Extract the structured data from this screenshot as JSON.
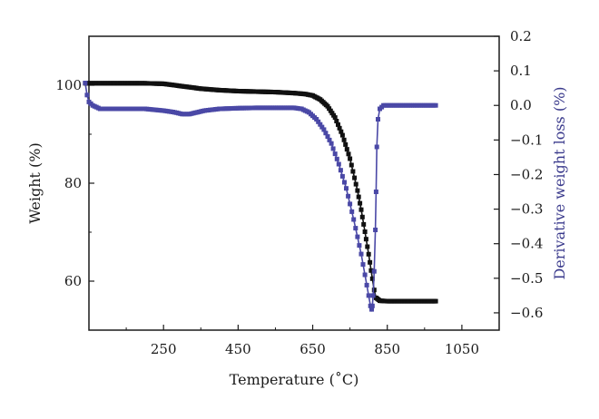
{
  "chart_data": {
    "type": "line",
    "xlabel": "Temperature (˚C)",
    "ylabel": "Weight (%)",
    "y2label": "Derivative weight loss (%)",
    "xlim": [
      50,
      1150
    ],
    "ylim": [
      50,
      110
    ],
    "y2lim": [
      -0.65,
      0.2
    ],
    "x_ticks": [
      250,
      450,
      650,
      850,
      1050
    ],
    "y_ticks": [
      60,
      80,
      100
    ],
    "y2_ticks": [
      "0.2",
      "0.1",
      "0.0",
      "−0.1",
      "−0.2",
      "−0.3",
      "−0.4",
      "−0.5",
      "−0.6"
    ],
    "y2_tick_values": [
      0.2,
      0.1,
      0.0,
      -0.1,
      -0.2,
      -0.3,
      -0.4,
      -0.5,
      -0.6
    ],
    "grid": false,
    "series": [
      {
        "axis": "left",
        "color": "#111111",
        "x": [
          40,
          100,
          150,
          200,
          250,
          300,
          350,
          400,
          450,
          500,
          550,
          600,
          630,
          650,
          670,
          690,
          710,
          730,
          750,
          770,
          780,
          790,
          800,
          810,
          815,
          820,
          830,
          850,
          900,
          950,
          980
        ],
        "y": [
          100.4,
          100.4,
          100.4,
          100.4,
          100.3,
          99.8,
          99.3,
          99.0,
          98.8,
          98.7,
          98.6,
          98.4,
          98.2,
          97.9,
          97.1,
          95.7,
          93.4,
          89.8,
          85.0,
          78.5,
          74.6,
          70.1,
          65.5,
          60.5,
          58.2,
          56.6,
          56.0,
          55.9,
          55.9,
          55.9,
          55.9
        ]
      },
      {
        "axis": "right",
        "color": "#4a48a6",
        "x": [
          40,
          45,
          50,
          60,
          80,
          100,
          150,
          200,
          250,
          280,
          300,
          320,
          340,
          360,
          400,
          450,
          500,
          550,
          600,
          620,
          640,
          660,
          680,
          700,
          720,
          740,
          760,
          780,
          790,
          800,
          805,
          808,
          810,
          812,
          815,
          818,
          820,
          822,
          825,
          830,
          840,
          850,
          900,
          950,
          980
        ],
        "y": [
          0.065,
          0.03,
          0.01,
          0.0,
          -0.01,
          -0.01,
          -0.01,
          -0.01,
          -0.015,
          -0.02,
          -0.025,
          -0.025,
          -0.02,
          -0.015,
          -0.01,
          -0.008,
          -0.007,
          -0.007,
          -0.007,
          -0.01,
          -0.02,
          -0.04,
          -0.07,
          -0.11,
          -0.17,
          -0.24,
          -0.33,
          -0.43,
          -0.49,
          -0.55,
          -0.58,
          -0.59,
          -0.58,
          -0.55,
          -0.48,
          -0.36,
          -0.25,
          -0.12,
          -0.04,
          -0.01,
          0.0,
          0.0,
          0.0,
          0.0,
          0.0
        ]
      }
    ]
  }
}
